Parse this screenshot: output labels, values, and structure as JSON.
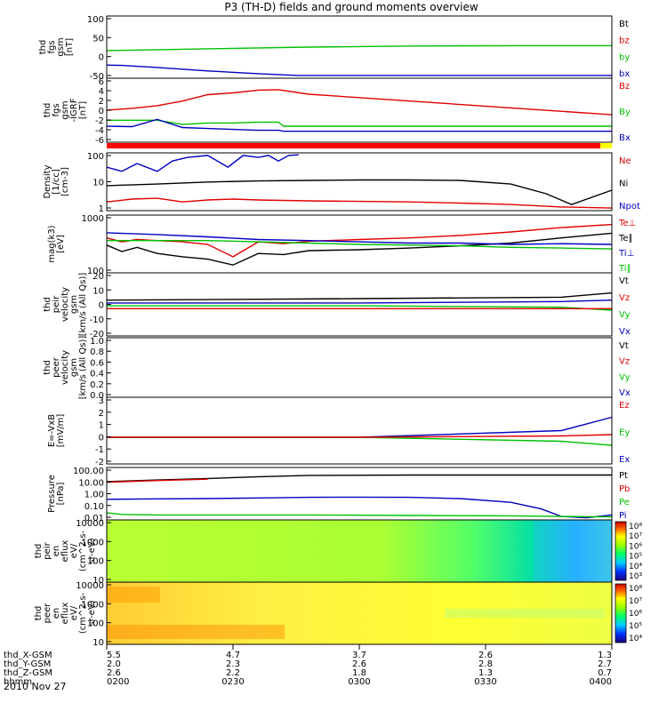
{
  "title": "P3 (TH-D) fields and ground moments overview",
  "date": "2010 Nov 27",
  "x_ticks": [
    "0200",
    "0230",
    "0300",
    "0330",
    "0400"
  ],
  "ephemeris": {
    "labels": [
      "thd_X-GSM",
      "thd_Y-GSM",
      "thd_Z-GSM",
      "hhmm"
    ],
    "X": [
      "5.5",
      "4.7",
      "3.7",
      "2.6",
      "1.3"
    ],
    "Y": [
      "2.0",
      "2.3",
      "2.6",
      "2.8",
      "2.7"
    ],
    "Z": [
      "2.6",
      "2.2",
      "1.8",
      "1.3",
      "0.7"
    ]
  },
  "colors": {
    "black": "#000000",
    "red": "#e00000",
    "green": "#00c000",
    "blue": "#0000c0",
    "flag_red": "#ff0000",
    "flag_yellow": "#ffff00"
  },
  "chart_data": [
    {
      "type": "line",
      "ylabel": [
        "thd",
        "fgs",
        "gsm",
        "[nT]"
      ],
      "yticks": [
        "100",
        "50",
        "0",
        "-50"
      ],
      "ylim": [
        -75,
        105
      ],
      "legend": [
        {
          "name": "Bt",
          "color": "black"
        },
        {
          "name": "bz",
          "color": "red"
        },
        {
          "name": "by",
          "color": "green"
        },
        {
          "name": "bx",
          "color": "blue"
        }
      ],
      "series": [
        {
          "name": "by",
          "color": "green",
          "x": [
            0,
            0.2,
            0.4,
            0.6,
            0.8,
            1.0
          ],
          "y": [
            5,
            10,
            15,
            18,
            19,
            19
          ]
        },
        {
          "name": "bx",
          "color": "blue",
          "x": [
            0,
            0.03,
            0.1,
            0.2,
            0.3,
            0.38,
            1.0
          ],
          "y": [
            -37,
            -38,
            -44,
            -54,
            -62,
            -67,
            -67
          ]
        }
      ]
    },
    {
      "type": "line",
      "ylabel": [
        "thd",
        "fgs",
        "gsm",
        "-IGRF",
        "[nT]"
      ],
      "yticks": [
        "6",
        "4",
        "2",
        "0",
        "-2",
        "-4",
        "-6"
      ],
      "ylim": [
        -7,
        7
      ],
      "legend": [
        {
          "name": "Bz",
          "color": "red"
        },
        {
          "name": "By",
          "color": "green"
        },
        {
          "name": "Bx",
          "color": "blue"
        }
      ],
      "series": [
        {
          "name": "Bz",
          "color": "red",
          "x": [
            0,
            0.05,
            0.1,
            0.15,
            0.2,
            0.25,
            0.3,
            0.34,
            0.4,
            0.6,
            0.8,
            1.0
          ],
          "y": [
            0,
            0.4,
            1.0,
            2.0,
            3.4,
            3.8,
            4.4,
            4.5,
            3.5,
            2.0,
            0.5,
            -1.0
          ]
        },
        {
          "name": "By",
          "color": "green",
          "x": [
            0,
            0.1,
            0.15,
            0.2,
            0.25,
            0.3,
            0.34,
            0.35,
            1.0
          ],
          "y": [
            -2.2,
            -2.2,
            -3.1,
            -2.8,
            -2.8,
            -2.6,
            -2.6,
            -3.5,
            -3.5
          ]
        },
        {
          "name": "Bx",
          "color": "blue",
          "x": [
            0,
            0.05,
            0.1,
            0.15,
            0.2,
            0.25,
            0.3,
            0.34,
            0.35,
            1.0
          ],
          "y": [
            -3.5,
            -3.6,
            -2.0,
            -3.8,
            -4.0,
            -4.2,
            -4.4,
            -4.4,
            -4.6,
            -4.6
          ]
        }
      ]
    },
    {
      "type": "line",
      "ylabel": [
        "Density",
        "[1/cc]",
        "[cm-3]"
      ],
      "yticks": [
        "100",
        "10",
        "1"
      ],
      "log": true,
      "ylim": [
        0.3,
        200
      ],
      "legend": [
        {
          "name": "Ne",
          "color": "red"
        },
        {
          "name": "Ni",
          "color": "black"
        },
        {
          "name": "Npot",
          "color": "blue"
        }
      ],
      "series": [
        {
          "name": "Ni",
          "color": "black",
          "x": [
            0,
            0.1,
            0.2,
            0.3,
            0.4,
            0.5,
            0.6,
            0.7,
            0.8,
            0.87,
            0.92,
            1.0
          ],
          "y": [
            5,
            6,
            7.5,
            8.5,
            9,
            9.5,
            9.5,
            9,
            6,
            2,
            0.6,
            3
          ]
        },
        {
          "name": "Ne",
          "color": "red",
          "x": [
            0,
            0.05,
            0.1,
            0.15,
            0.2,
            0.25,
            0.3,
            0.4,
            0.5,
            0.6,
            0.7,
            0.8,
            0.9,
            1.0
          ],
          "y": [
            0.8,
            1.1,
            1.2,
            0.8,
            1.0,
            1.1,
            1.0,
            0.9,
            0.85,
            0.8,
            0.7,
            0.6,
            0.45,
            0.4
          ]
        },
        {
          "name": "Npot",
          "color": "blue",
          "x": [
            0,
            0.03,
            0.06,
            0.1,
            0.13,
            0.16,
            0.2,
            0.24,
            0.27,
            0.3,
            0.32,
            0.34,
            0.36,
            0.38
          ],
          "y": [
            40,
            25,
            60,
            25,
            80,
            120,
            150,
            40,
            150,
            120,
            150,
            80,
            150,
            160
          ]
        }
      ]
    },
    {
      "type": "line",
      "ylabel": [
        "mag(k3)",
        "[eV]"
      ],
      "yticks": [
        "1000",
        "100"
      ],
      "log": true,
      "ylim": [
        100,
        1200
      ],
      "legend": [
        {
          "name": "Te⊥",
          "color": "red"
        },
        {
          "name": "Te∥",
          "color": "black"
        },
        {
          "name": "Ti⊥",
          "color": "blue"
        },
        {
          "name": "Ti∥",
          "color": "green"
        }
      ],
      "series": [
        {
          "name": "Te∥",
          "color": "black",
          "x": [
            0,
            0.03,
            0.06,
            0.1,
            0.15,
            0.2,
            0.25,
            0.3,
            0.35,
            0.4,
            0.5,
            0.6,
            0.7,
            0.8,
            0.9,
            1.0
          ],
          "y": [
            330,
            250,
            300,
            230,
            200,
            180,
            140,
            230,
            220,
            260,
            270,
            290,
            320,
            360,
            450,
            550
          ]
        },
        {
          "name": "Te⊥",
          "color": "red",
          "x": [
            0,
            0.03,
            0.06,
            0.1,
            0.15,
            0.2,
            0.25,
            0.3,
            0.35,
            0.4,
            0.5,
            0.6,
            0.7,
            0.8,
            0.9,
            1.0
          ],
          "y": [
            450,
            380,
            420,
            400,
            380,
            340,
            200,
            380,
            350,
            390,
            420,
            450,
            500,
            580,
            700,
            800
          ]
        },
        {
          "name": "Ti⊥",
          "color": "blue",
          "x": [
            0,
            0.1,
            0.2,
            0.3,
            0.4,
            0.5,
            0.6,
            0.7,
            0.8,
            0.9,
            1.0
          ],
          "y": [
            560,
            520,
            470,
            420,
            400,
            380,
            360,
            360,
            340,
            350,
            340
          ]
        },
        {
          "name": "Ti∥",
          "color": "green",
          "x": [
            0,
            0.1,
            0.2,
            0.3,
            0.4,
            0.5,
            0.6,
            0.7,
            0.8,
            0.9,
            1.0
          ],
          "y": [
            400,
            400,
            400,
            380,
            360,
            340,
            330,
            320,
            300,
            290,
            280
          ]
        }
      ]
    },
    {
      "type": "line",
      "ylabel": [
        "thd",
        "peir",
        "velocity",
        "gsm",
        "[km/s (All Qs)]"
      ],
      "yticks": [
        "20",
        "10",
        "0",
        "-10",
        "-20"
      ],
      "ylim": [
        -22,
        22
      ],
      "legend": [
        {
          "name": "Vt",
          "color": "black"
        },
        {
          "name": "Vz",
          "color": "red"
        },
        {
          "name": "Vy",
          "color": "green"
        },
        {
          "name": "Vx",
          "color": "blue"
        }
      ],
      "series": [
        {
          "name": "Vt",
          "color": "black",
          "x": [
            0,
            0.5,
            0.9,
            1.0
          ],
          "y": [
            3,
            4,
            5,
            8
          ]
        },
        {
          "name": "Vy",
          "color": "green",
          "x": [
            0,
            0.5,
            0.9,
            1.0
          ],
          "y": [
            -1,
            -1,
            -2,
            -4
          ]
        },
        {
          "name": "Vx",
          "color": "blue",
          "x": [
            0,
            0.5,
            0.9,
            1.0
          ],
          "y": [
            1,
            1,
            2,
            3
          ]
        },
        {
          "name": "Vz",
          "color": "red",
          "x": [
            0,
            0.5,
            0.9,
            1.0
          ],
          "y": [
            -3,
            -3,
            -3,
            -3
          ]
        }
      ]
    },
    {
      "type": "line",
      "ylabel": [
        "thd",
        "peer",
        "velocity",
        "gsm",
        "[km/s (All Qs)]"
      ],
      "yticks": [
        "1.0",
        "0.8",
        "0.6",
        "0.4",
        "0.2",
        "0.0"
      ],
      "ylim": [
        0,
        1.0
      ],
      "legend": [
        {
          "name": "Vt",
          "color": "black"
        },
        {
          "name": "Vz",
          "color": "red"
        },
        {
          "name": "Vy",
          "color": "green"
        },
        {
          "name": "Vx",
          "color": "blue"
        }
      ],
      "series": []
    },
    {
      "type": "line",
      "ylabel": [
        "E=-VxB",
        "[mV/m]"
      ],
      "yticks": [
        "3",
        "2",
        "1",
        "0",
        "-1",
        "-2"
      ],
      "ylim": [
        -2,
        3
      ],
      "legend": [
        {
          "name": "Ez",
          "color": "red"
        },
        {
          "name": "Ey",
          "color": "green"
        },
        {
          "name": "Ex",
          "color": "blue"
        }
      ],
      "series": [
        {
          "name": "Ex",
          "color": "blue",
          "x": [
            0,
            0.5,
            0.9,
            1.0
          ],
          "y": [
            0,
            0,
            0.5,
            1.5
          ]
        },
        {
          "name": "Ey",
          "color": "green",
          "x": [
            0,
            0.5,
            0.9,
            1.0
          ],
          "y": [
            0,
            0,
            -0.3,
            -0.6
          ]
        },
        {
          "name": "Ez",
          "color": "red",
          "x": [
            0,
            0.5,
            0.9,
            1.0
          ],
          "y": [
            0,
            0,
            0.1,
            0.2
          ]
        }
      ]
    },
    {
      "type": "line",
      "ylabel": [
        "Pressure",
        "[nPa]"
      ],
      "yticks": [
        "100.00",
        "10.00",
        "1.00",
        "0.10",
        "0.01"
      ],
      "log": true,
      "ylim": [
        0.008,
        120
      ],
      "legend": [
        {
          "name": "Pt",
          "color": "black"
        },
        {
          "name": "Pb",
          "color": "red"
        },
        {
          "name": "Pe",
          "color": "green"
        },
        {
          "name": "Pi",
          "color": "blue"
        }
      ],
      "series": [
        {
          "name": "Pt",
          "color": "black",
          "x": [
            0,
            0.1,
            0.2,
            0.3,
            0.4,
            0.6,
            0.8,
            1.0
          ],
          "y": [
            9,
            12,
            16,
            22,
            28,
            30,
            30,
            30
          ]
        },
        {
          "name": "Pb",
          "color": "red",
          "x": [
            0,
            0.1,
            0.2
          ],
          "y": [
            8,
            11,
            14
          ]
        },
        {
          "name": "Pi",
          "color": "blue",
          "x": [
            0,
            0.1,
            0.2,
            0.3,
            0.4,
            0.5,
            0.6,
            0.7,
            0.8,
            0.86,
            0.9,
            0.95,
            1.0
          ],
          "y": [
            0.35,
            0.38,
            0.4,
            0.45,
            0.5,
            0.52,
            0.5,
            0.4,
            0.2,
            0.06,
            0.015,
            0.012,
            0.02
          ]
        },
        {
          "name": "Pe",
          "color": "green",
          "x": [
            0,
            0.03,
            0.1,
            0.2,
            0.4,
            0.6,
            0.8,
            0.9,
            1.0
          ],
          "y": [
            0.03,
            0.022,
            0.02,
            0.02,
            0.02,
            0.018,
            0.017,
            0.015,
            0.014
          ]
        }
      ]
    },
    {
      "type": "heatmap",
      "ylabel": [
        "thd",
        "peir",
        "en",
        "eflux",
        "eV/",
        "(cm^2-s-",
        "sr-eV)"
      ],
      "yticks": [
        "10000",
        "1000",
        "100",
        "10"
      ],
      "colorbar": [
        "10⁸",
        "10⁷",
        "10⁶",
        "10⁵",
        "10⁴",
        "10³"
      ]
    },
    {
      "type": "heatmap",
      "ylabel": [
        "thd",
        "peer",
        "en",
        "eflux",
        "eV/",
        "(cm^2-s-",
        "sr-eV)"
      ],
      "yticks": [
        "10000",
        "1000",
        "100",
        "10"
      ],
      "colorbar": [
        "10⁸",
        "10⁷",
        "10⁶",
        "10⁵",
        "10⁴"
      ]
    }
  ]
}
